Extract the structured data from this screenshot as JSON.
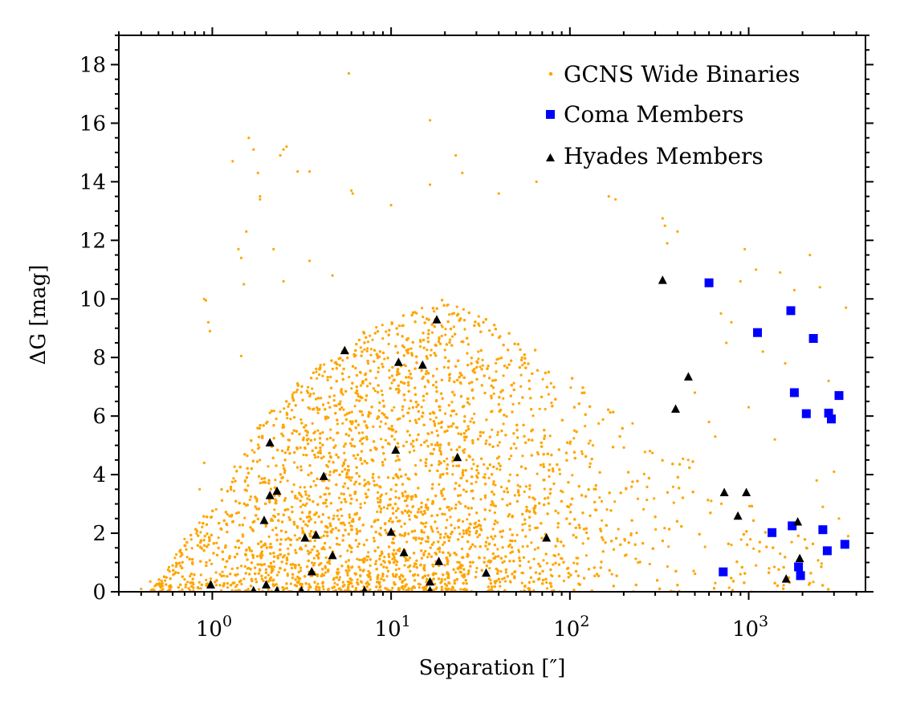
{
  "chart_data": {
    "type": "scatter",
    "title": "",
    "xlabel": "Separation [″]",
    "ylabel": "ΔG [mag]",
    "xscale": "log",
    "xlim": [
      0.3,
      4500
    ],
    "ylim": [
      0,
      19
    ],
    "x_tick_labels": [
      {
        "value": 1,
        "base": "10",
        "exp": "0"
      },
      {
        "value": 10,
        "base": "10",
        "exp": "1"
      },
      {
        "value": 100,
        "base": "10",
        "exp": "2"
      },
      {
        "value": 1000,
        "base": "10",
        "exp": "3"
      }
    ],
    "y_ticks": [
      0,
      2,
      4,
      6,
      8,
      10,
      12,
      14,
      16,
      18
    ],
    "legend_position": "top-right",
    "series": [
      {
        "name": "GCNS Wide Binaries",
        "marker": "dot",
        "color": "#FFA500",
        "note": "dense cloud of thousands of points, approximated by a representative sample",
        "points": [
          [
            0.9,
            10.0
          ],
          [
            0.92,
            9.95
          ],
          [
            0.97,
            8.9
          ],
          [
            0.95,
            9.2
          ],
          [
            1.3,
            14.7
          ],
          [
            1.6,
            15.5
          ],
          [
            1.7,
            15.1
          ],
          [
            1.8,
            14.3
          ],
          [
            1.85,
            13.5
          ],
          [
            1.85,
            13.4
          ],
          [
            2.5,
            15.1
          ],
          [
            2.6,
            15.2
          ],
          [
            2.4,
            14.9
          ],
          [
            3.0,
            14.35
          ],
          [
            3.5,
            14.35
          ],
          [
            5.8,
            17.7
          ],
          [
            6.0,
            13.7
          ],
          [
            6.1,
            13.6
          ],
          [
            10,
            13.2
          ],
          [
            16.5,
            16.1
          ],
          [
            16.5,
            13.9
          ],
          [
            23,
            14.9
          ],
          [
            25,
            14.3
          ],
          [
            40,
            13.6
          ],
          [
            65,
            14.0
          ],
          [
            165,
            13.5
          ],
          [
            180,
            13.4
          ],
          [
            1.55,
            12.3
          ],
          [
            1.4,
            11.7
          ],
          [
            1.45,
            11.4
          ],
          [
            1.5,
            10.5
          ],
          [
            1.45,
            8.05
          ],
          [
            2.5,
            10.6
          ],
          [
            2.2,
            11.7
          ],
          [
            3.5,
            11.3
          ],
          [
            4.7,
            10.8
          ],
          [
            330,
            12.75
          ],
          [
            340,
            12.5
          ],
          [
            350,
            11.9
          ],
          [
            400,
            12.3
          ],
          [
            2200,
            11.5
          ],
          [
            3500,
            9.7
          ],
          [
            950,
            11.7
          ],
          [
            1100,
            11.0
          ],
          [
            1500,
            10.9
          ],
          [
            1800,
            10.3
          ],
          [
            2500,
            10.4
          ],
          [
            900,
            10.6
          ],
          [
            700,
            9.5
          ],
          [
            800,
            9.2
          ],
          [
            750,
            8.5
          ],
          [
            1200,
            8.2
          ],
          [
            1600,
            7.8
          ],
          [
            2800,
            7.2
          ],
          [
            500,
            6.8
          ],
          [
            600,
            5.8
          ],
          [
            650,
            5.3
          ],
          [
            1000,
            6.3
          ],
          [
            1400,
            5.2
          ],
          [
            2400,
            3.8
          ],
          [
            3000,
            4.1
          ],
          [
            2600,
            2.9
          ],
          [
            3200,
            2.5
          ],
          [
            3600,
            1.9
          ],
          [
            2100,
            1.5
          ],
          [
            1300,
            0.8
          ],
          [
            1500,
            1.3
          ],
          [
            1100,
            0.9
          ],
          [
            800,
            1.6
          ],
          [
            900,
            0.6
          ],
          [
            650,
            0.3
          ],
          [
            0.4,
            0.1
          ],
          [
            0.45,
            0.35
          ],
          [
            0.55,
            0.5
          ],
          [
            0.6,
            0.9
          ],
          [
            0.7,
            1.8
          ],
          [
            0.85,
            3.5
          ],
          [
            0.9,
            4.4
          ]
        ]
      },
      {
        "name": "Coma Members",
        "marker": "square",
        "color": "#0000FF",
        "points": [
          [
            600,
            10.55
          ],
          [
            1120,
            8.85
          ],
          [
            1720,
            9.6
          ],
          [
            2300,
            8.65
          ],
          [
            1800,
            6.8
          ],
          [
            2100,
            6.08
          ],
          [
            2800,
            6.1
          ],
          [
            2900,
            5.9
          ],
          [
            3200,
            6.7
          ],
          [
            1750,
            2.25
          ],
          [
            1350,
            2.02
          ],
          [
            2600,
            2.12
          ],
          [
            2750,
            1.4
          ],
          [
            3450,
            1.62
          ],
          [
            1900,
            0.85
          ],
          [
            1950,
            0.55
          ],
          [
            720,
            0.68
          ]
        ]
      },
      {
        "name": "Hyades Members",
        "marker": "triangle",
        "color": "#000000",
        "points": [
          [
            330,
            10.65
          ],
          [
            18,
            9.3
          ],
          [
            5.5,
            8.25
          ],
          [
            11,
            7.85
          ],
          [
            15,
            7.75
          ],
          [
            460,
            7.35
          ],
          [
            390,
            6.25
          ],
          [
            2.1,
            5.1
          ],
          [
            10.6,
            4.85
          ],
          [
            23.5,
            4.6
          ],
          [
            4.2,
            3.95
          ],
          [
            2.3,
            3.45
          ],
          [
            2.1,
            3.3
          ],
          [
            1.95,
            2.45
          ],
          [
            730,
            3.4
          ],
          [
            970,
            3.4
          ],
          [
            870,
            2.6
          ],
          [
            1880,
            2.4
          ],
          [
            3.8,
            1.95
          ],
          [
            3.3,
            1.85
          ],
          [
            10,
            2.05
          ],
          [
            74,
            1.85
          ],
          [
            4.7,
            1.25
          ],
          [
            11.8,
            1.35
          ],
          [
            18.5,
            1.05
          ],
          [
            3.6,
            0.7
          ],
          [
            34,
            0.65
          ],
          [
            1930,
            1.15
          ],
          [
            1620,
            0.45
          ],
          [
            16.5,
            0.35
          ],
          [
            0.98,
            0.25
          ],
          [
            2.0,
            0.25
          ],
          [
            1.7,
            0.05
          ],
          [
            2.3,
            0.05
          ],
          [
            3.15,
            0.05
          ],
          [
            7.1,
            0.05
          ],
          [
            16.5,
            0.05
          ]
        ]
      }
    ]
  }
}
